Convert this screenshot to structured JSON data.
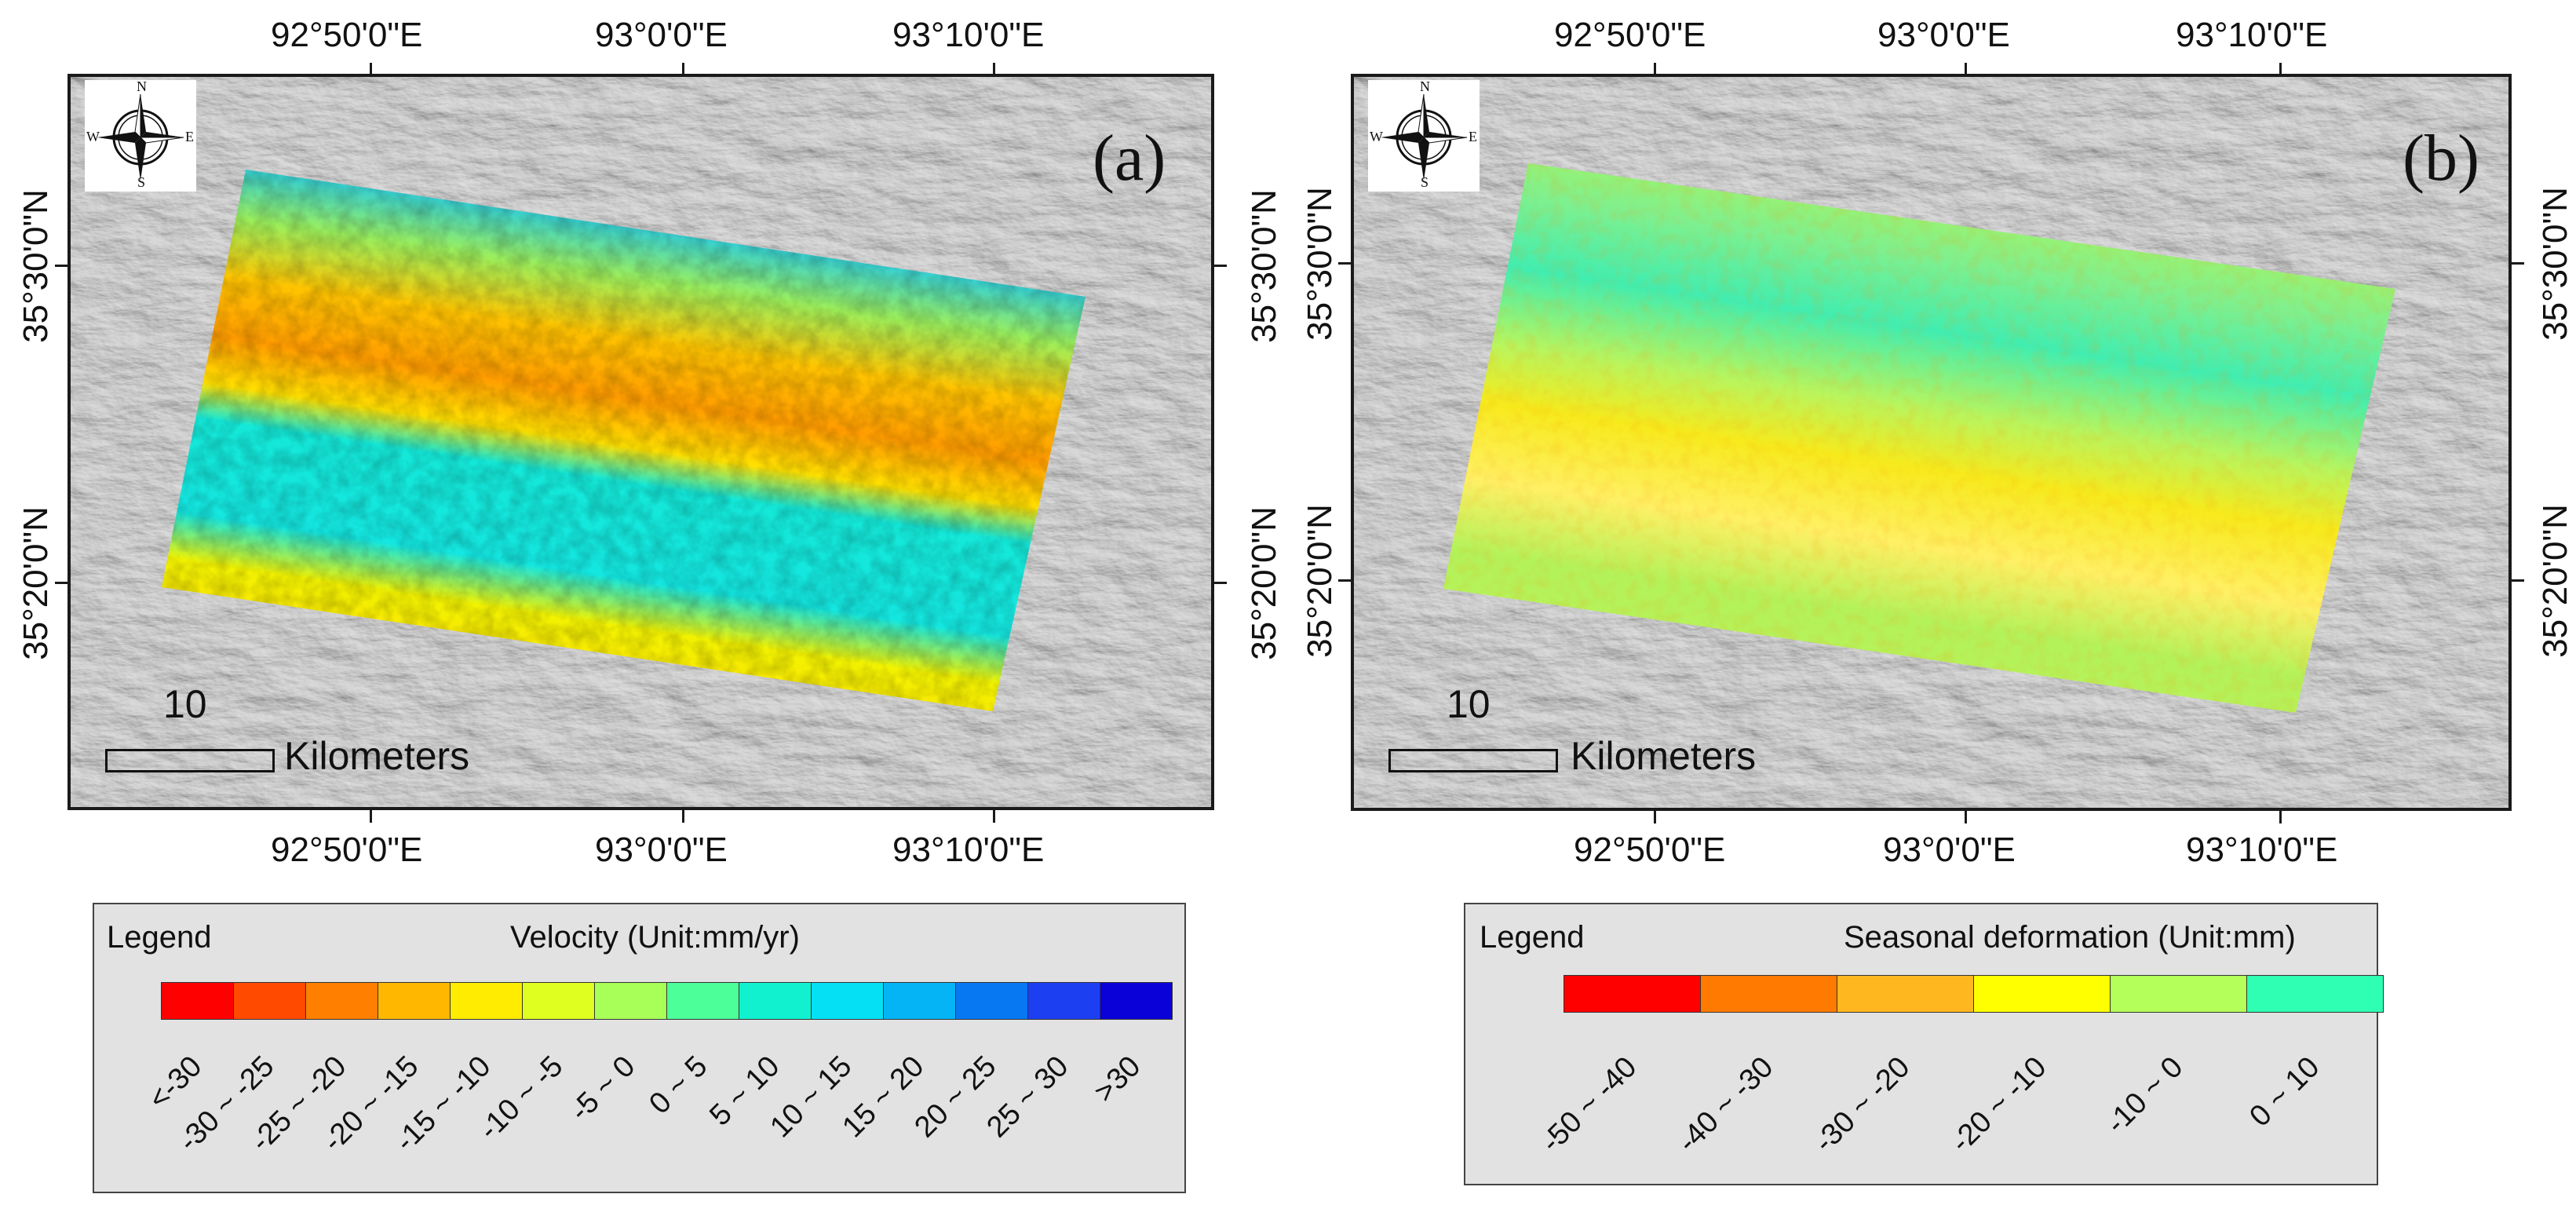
{
  "panel_a": {
    "label": "(a)",
    "top_lon_labels": [
      "92°50'0\"E",
      "93°0'0\"E",
      "93°10'0\"E"
    ],
    "bottom_lon_labels": [
      "92°50'0\"E",
      "93°0'0\"E",
      "93°10'0\"E"
    ],
    "right_lat_labels": [
      "35°30'0\"N",
      "35°20'0\"N"
    ],
    "compass": {
      "n": "N",
      "s": "S",
      "e": "E",
      "w": "W"
    },
    "scale_number": "10",
    "scale_unit": "Kilometers",
    "legend": {
      "heading": "Legend",
      "title": "Velocity (Unit:mm/yr)",
      "classes": [
        {
          "label": "<-30",
          "color": "#ff0000"
        },
        {
          "label": "-30 ~ -25",
          "color": "#ff4a00"
        },
        {
          "label": "-25 ~ -20",
          "color": "#ff8000"
        },
        {
          "label": "-20 ~ -15",
          "color": "#ffb700"
        },
        {
          "label": "-15 ~ -10",
          "color": "#ffec00"
        },
        {
          "label": "-10 ~ -5",
          "color": "#dfff20"
        },
        {
          "label": "-5 ~ 0",
          "color": "#a8ff58"
        },
        {
          "label": "0 ~ 5",
          "color": "#4dff99"
        },
        {
          "label": "5 ~ 10",
          "color": "#12f1cf"
        },
        {
          "label": "10 ~ 15",
          "color": "#06e0f4"
        },
        {
          "label": "15 ~ 20",
          "color": "#05b4f5"
        },
        {
          "label": "20 ~ 25",
          "color": "#0778f2"
        },
        {
          "label": "25 ~ 30",
          "color": "#1d3ff2"
        },
        {
          "label": ">30",
          "color": "#0a00d8"
        }
      ]
    }
  },
  "panel_b": {
    "label": "(b)",
    "top_lon_labels": [
      "92°50'0\"E",
      "93°0'0\"E",
      "93°10'0\"E"
    ],
    "bottom_lon_labels": [
      "92°50'0\"E",
      "93°0'0\"E",
      "93°10'0\"E"
    ],
    "right_lat_labels": [
      "35°30'0\"N",
      "35°20'0\"N"
    ],
    "compass": {
      "n": "N",
      "s": "S",
      "e": "E",
      "w": "W"
    },
    "scale_number": "10",
    "scale_unit": "Kilometers",
    "legend": {
      "heading": "Legend",
      "title": "Seasonal deformation (Unit:mm)",
      "classes": [
        {
          "label": "-50 ~ -40",
          "color": "#ff0000"
        },
        {
          "label": "-40 ~ -30",
          "color": "#ff7a00"
        },
        {
          "label": "-30 ~ -20",
          "color": "#ffb71f"
        },
        {
          "label": "-20 ~ -10",
          "color": "#ffff00"
        },
        {
          "label": "-10 ~ 0",
          "color": "#b5ff5a"
        },
        {
          "label": "0 ~ 10",
          "color": "#2fffb2"
        }
      ]
    }
  }
}
